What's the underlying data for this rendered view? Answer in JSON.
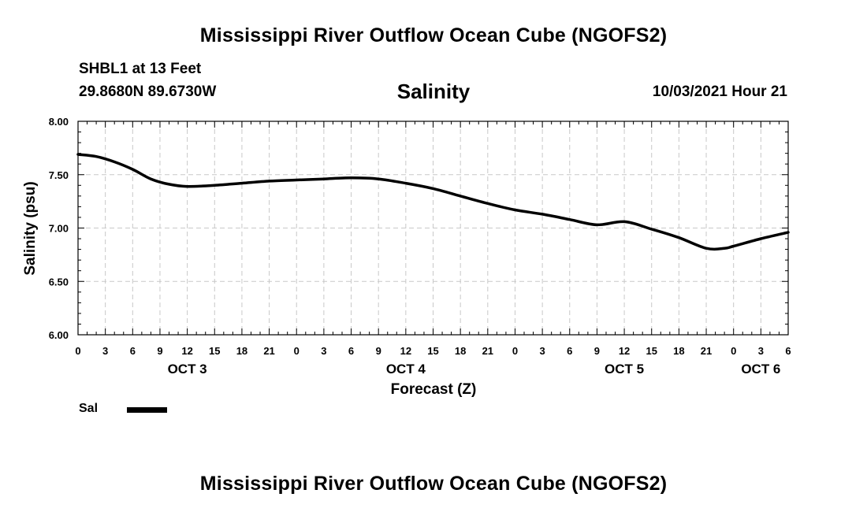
{
  "header": {
    "title": "Mississippi River Outflow Ocean Cube (NGOFS2)",
    "station": "SHBL1 at 13 Feet",
    "coords": "29.8680N  89.6730W",
    "product": "Salinity",
    "datetime": "10/03/2021 Hour 21"
  },
  "footer": {
    "title": "Mississippi River Outflow Ocean Cube (NGOFS2)"
  },
  "legend": {
    "label": "Sal",
    "color": "#000000"
  },
  "chart_data": {
    "type": "line",
    "title": "Salinity",
    "xlabel": "Forecast (Z)",
    "ylabel": "Salinity (psu)",
    "ylim": [
      6.0,
      8.0
    ],
    "yticks": [
      "6.00",
      "6.50",
      "7.00",
      "7.50",
      "8.00"
    ],
    "xlim": [
      "10/03/2021 00Z",
      "10/06/2021 06Z"
    ],
    "xtick_labels": [
      "0",
      "3",
      "6",
      "9",
      "12",
      "15",
      "18",
      "21",
      "0",
      "3",
      "6",
      "9",
      "12",
      "15",
      "18",
      "21",
      "0",
      "3",
      "6",
      "9",
      "12",
      "15",
      "18",
      "21",
      "0",
      "3",
      "6"
    ],
    "day_labels": [
      "OCT 3",
      "OCT 4",
      "OCT 5",
      "OCT 6"
    ],
    "grid": true,
    "series": [
      {
        "name": "Sal",
        "color": "#000000",
        "x": [
          "10/03 00Z",
          "10/03 02Z",
          "10/03 04Z",
          "10/03 06Z",
          "10/03 08Z",
          "10/03 10Z",
          "10/03 12Z",
          "10/03 15Z",
          "10/03 18Z",
          "10/03 21Z",
          "10/04 00Z",
          "10/04 03Z",
          "10/04 06Z",
          "10/04 09Z",
          "10/04 12Z",
          "10/04 15Z",
          "10/04 18Z",
          "10/04 21Z",
          "10/05 00Z",
          "10/05 03Z",
          "10/05 06Z",
          "10/05 09Z",
          "10/05 12Z",
          "10/05 15Z",
          "10/05 18Z",
          "10/05 21Z",
          "10/05 23Z",
          "10/06 00Z",
          "10/06 03Z",
          "10/06 06Z"
        ],
        "values": [
          7.69,
          7.67,
          7.62,
          7.55,
          7.46,
          7.41,
          7.39,
          7.4,
          7.42,
          7.44,
          7.45,
          7.46,
          7.47,
          7.46,
          7.42,
          7.37,
          7.3,
          7.23,
          7.17,
          7.13,
          7.08,
          7.03,
          7.06,
          6.99,
          6.91,
          6.81,
          6.81,
          6.83,
          6.9,
          6.96
        ]
      }
    ]
  }
}
